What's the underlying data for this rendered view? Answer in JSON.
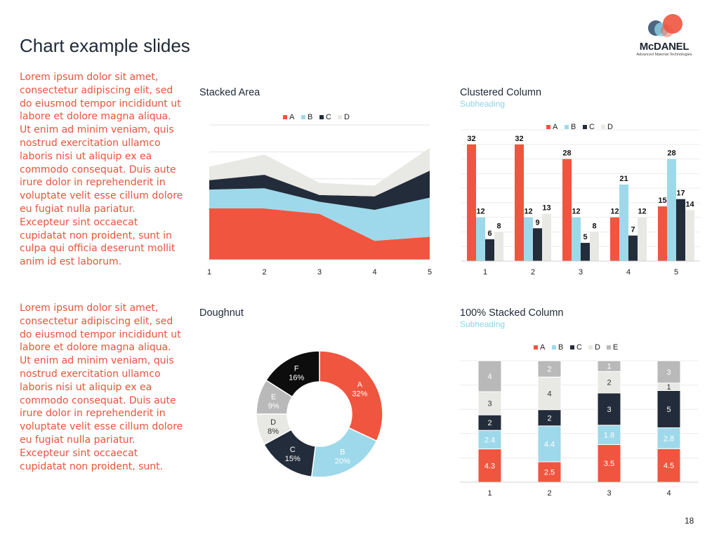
{
  "page": {
    "title": "Chart example slides",
    "page_number": "18",
    "logo": {
      "name": "McDANEL",
      "tagline": "Advanced Material Technologies"
    },
    "body_paragraphs": [
      "Lorem ipsum dolor sit amet, consectetur adipiscing elit, sed do eiusmod tempor incididunt ut labore et dolore magna aliqua. Ut enim ad minim veniam, quis nostrud exercitation ullamco laboris nisi ut aliquip ex ea commodo consequat. Duis aute irure dolor in reprehenderit in voluptate velit esse cillum dolore eu fugiat nulla pariatur. Excepteur sint occaecat cupidatat non proident, sunt in culpa qui officia deserunt mollit anim id est laborum.",
      "Lorem ipsum dolor sit amet, consectetur adipiscing elit, sed do eiusmod tempor incididunt ut labore et dolore magna aliqua. Ut enim ad minim veniam, quis nostrud exercitation ullamco laboris nisi ut aliquip ex ea commodo consequat. Duis aute irure dolor in reprehenderit in voluptate velit esse cillum dolore eu fugiat nulla pariatur. Excepteur sint occaecat cupidatat non proident, sunt."
    ]
  },
  "colors": {
    "A": "#f0553f",
    "B": "#9dd9ea",
    "C": "#232c3a",
    "D": "#e8e8e4",
    "E": "#b9b9b9",
    "F": "#0d0d0d",
    "title": "#1f2937",
    "accent": "#e8533c",
    "subheading": "#8fd3e8"
  },
  "chart_data": [
    {
      "id": "stacked_area",
      "type": "area",
      "stacked": true,
      "title": "Stacked Area",
      "legend": [
        "A",
        "B",
        "C",
        "D"
      ],
      "categories": [
        "1",
        "2",
        "3",
        "4",
        "5"
      ],
      "series": [
        {
          "name": "A",
          "values": [
            3.8,
            3.8,
            3.4,
            1.4,
            1.7
          ]
        },
        {
          "name": "B",
          "values": [
            1.4,
            1.5,
            0.9,
            2.3,
            2.9
          ]
        },
        {
          "name": "C",
          "values": [
            0.7,
            1.0,
            0.5,
            1.0,
            2.0
          ]
        },
        {
          "name": "D",
          "values": [
            1.0,
            1.5,
            0.9,
            0.8,
            1.7
          ]
        }
      ],
      "ylim": [
        0,
        10
      ]
    },
    {
      "id": "clustered_column",
      "type": "bar",
      "title": "Clustered Column",
      "subtitle": "Subheading",
      "legend": [
        "A",
        "B",
        "C",
        "D"
      ],
      "categories": [
        "1",
        "2",
        "3",
        "4",
        "5"
      ],
      "series": [
        {
          "name": "A",
          "values": [
            32,
            32,
            28,
            12,
            15
          ]
        },
        {
          "name": "B",
          "values": [
            12,
            12,
            12,
            21,
            28
          ]
        },
        {
          "name": "C",
          "values": [
            6,
            9,
            5,
            7,
            17
          ]
        },
        {
          "name": "D",
          "values": [
            8,
            13,
            8,
            12,
            14
          ]
        }
      ],
      "ylim": [
        0,
        36
      ]
    },
    {
      "id": "doughnut",
      "type": "pie",
      "hole": true,
      "title": "Doughnut",
      "slices": [
        {
          "label": "A",
          "value": 32,
          "pct": "32%"
        },
        {
          "label": "B",
          "value": 20,
          "pct": "20%"
        },
        {
          "label": "C",
          "value": 15,
          "pct": "15%"
        },
        {
          "label": "D",
          "value": 8,
          "pct": "8%"
        },
        {
          "label": "E",
          "value": 9,
          "pct": "9%"
        },
        {
          "label": "F",
          "value": 16,
          "pct": "16%"
        }
      ]
    },
    {
      "id": "stacked_100",
      "type": "bar",
      "stacked": "100%",
      "title": "100% Stacked Column",
      "subtitle": "Subheading",
      "legend": [
        "A",
        "B",
        "C",
        "D",
        "E"
      ],
      "categories": [
        "1",
        "2",
        "3",
        "4"
      ],
      "series": [
        {
          "name": "A",
          "values": [
            4.3,
            2.5,
            3.5,
            4.5
          ]
        },
        {
          "name": "B",
          "values": [
            2.4,
            4.4,
            1.8,
            2.8
          ]
        },
        {
          "name": "C",
          "values": [
            2,
            2,
            3,
            5
          ]
        },
        {
          "name": "D",
          "values": [
            3,
            4,
            2,
            1
          ]
        },
        {
          "name": "E",
          "values": [
            4,
            2,
            1,
            3
          ]
        }
      ]
    }
  ]
}
